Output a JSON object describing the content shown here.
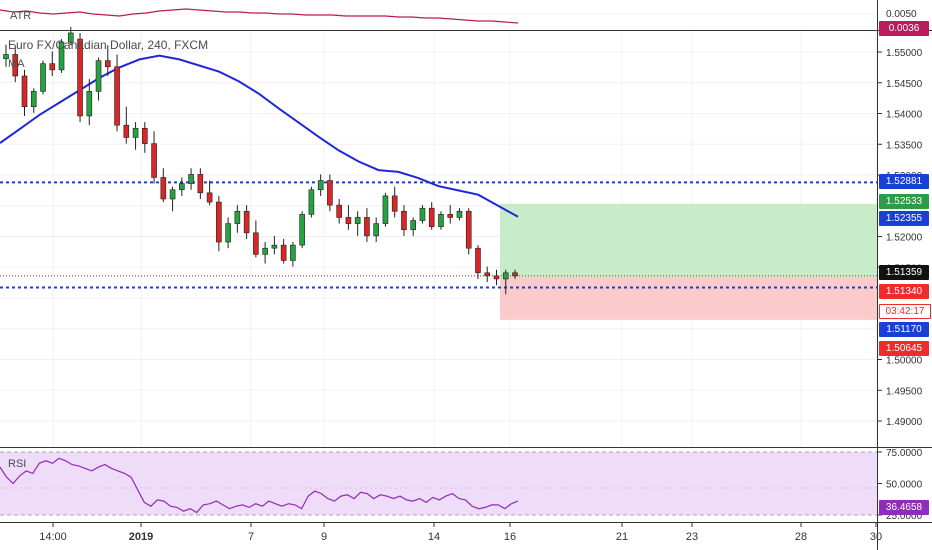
{
  "atr_pane": {
    "label": "ATR",
    "axis_labels": [
      "0.0050"
    ],
    "current_value": "0.0036",
    "colors": {
      "line": "#b71c5c",
      "value_bg": "#b71c5c"
    }
  },
  "main_pane": {
    "legend_title": "Euro FX/Canadian Dollar, 240, FXCM",
    "legend_ma": "MA",
    "y_axis_labels": [
      "1.55000",
      "1.54500",
      "1.54000",
      "1.53500",
      "1.53000",
      "1.52000",
      "1.51500",
      "1.50000",
      "1.49500",
      "1.49000"
    ],
    "price_tags": [
      {
        "text": "1.52881",
        "color": "#1a3fd6"
      },
      {
        "text": "1.52533",
        "color": "#2e9b48"
      },
      {
        "text": "1.52355",
        "color": "#1a3fd6"
      },
      {
        "text": "1.51359",
        "color": "#111111"
      },
      {
        "text": "1.51340",
        "color": "#ef2b2b"
      },
      {
        "text": "03:42:17",
        "color": "#ef2b2b",
        "style": "outline"
      },
      {
        "text": "1.51170",
        "color": "#1a3fd6"
      },
      {
        "text": "1.50645",
        "color": "#ef2b2b"
      }
    ],
    "levels": [
      1.52881,
      1.5117
    ],
    "last_price": 1.51359,
    "position": {
      "entry": 1.5134,
      "target": 1.52533,
      "stop": 1.50645
    },
    "colors": {
      "up": "#26a241",
      "down": "#d92626",
      "ma": "#1f28d9",
      "level": "#1a3fd6",
      "profit_zone": "#c8ecc8",
      "loss_zone": "#fbcaca"
    },
    "ma_line": [
      1.5352,
      1.5375,
      1.5398,
      1.5418,
      1.5438,
      1.5458,
      1.5475,
      1.5488,
      1.5494,
      1.5488,
      1.5478,
      1.5468,
      1.5452,
      1.5432,
      1.5408,
      1.5385,
      1.5362,
      1.534,
      1.5322,
      1.5308,
      1.5305,
      1.5295,
      1.5282,
      1.5275,
      1.5268,
      1.525,
      1.5232
    ],
    "candles": [
      [
        1.5489,
        1.5512,
        1.5476,
        1.5496
      ],
      [
        1.5496,
        1.5511,
        1.5451,
        1.5461
      ],
      [
        1.5461,
        1.5471,
        1.5396,
        1.5411
      ],
      [
        1.5411,
        1.5441,
        1.5401,
        1.5436
      ],
      [
        1.5436,
        1.5486,
        1.5431,
        1.5481
      ],
      [
        1.5481,
        1.5501,
        1.5461,
        1.5471
      ],
      [
        1.5471,
        1.5521,
        1.5466,
        1.5516
      ],
      [
        1.5516,
        1.5541,
        1.5511,
        1.5531
      ],
      [
        1.5521,
        1.5531,
        1.5386,
        1.5396
      ],
      [
        1.5396,
        1.5456,
        1.5381,
        1.5436
      ],
      [
        1.5436,
        1.5491,
        1.5421,
        1.5486
      ],
      [
        1.5486,
        1.5511,
        1.5461,
        1.5476
      ],
      [
        1.5476,
        1.5496,
        1.5371,
        1.5381
      ],
      [
        1.5381,
        1.5411,
        1.5351,
        1.5361
      ],
      [
        1.5361,
        1.5386,
        1.5341,
        1.5376
      ],
      [
        1.5376,
        1.5386,
        1.5336,
        1.5351
      ],
      [
        1.5351,
        1.5371,
        1.5286,
        1.5296
      ],
      [
        1.5296,
        1.5311,
        1.5256,
        1.5261
      ],
      [
        1.5261,
        1.5281,
        1.5241,
        1.5276
      ],
      [
        1.5276,
        1.5296,
        1.5266,
        1.5286
      ],
      [
        1.5286,
        1.5311,
        1.5276,
        1.5301
      ],
      [
        1.5301,
        1.5311,
        1.5261,
        1.5271
      ],
      [
        1.5271,
        1.5291,
        1.5251,
        1.5256
      ],
      [
        1.5256,
        1.5266,
        1.5176,
        1.5191
      ],
      [
        1.5191,
        1.5231,
        1.5181,
        1.5221
      ],
      [
        1.5221,
        1.5251,
        1.5206,
        1.5241
      ],
      [
        1.5241,
        1.5251,
        1.5196,
        1.5206
      ],
      [
        1.5206,
        1.5226,
        1.5166,
        1.5171
      ],
      [
        1.5171,
        1.5191,
        1.5156,
        1.5181
      ],
      [
        1.5181,
        1.5201,
        1.5171,
        1.5186
      ],
      [
        1.5186,
        1.5196,
        1.5156,
        1.5161
      ],
      [
        1.5161,
        1.5191,
        1.5151,
        1.5186
      ],
      [
        1.5186,
        1.5241,
        1.5181,
        1.5236
      ],
      [
        1.5236,
        1.5281,
        1.5231,
        1.5276
      ],
      [
        1.5276,
        1.5301,
        1.5266,
        1.5291
      ],
      [
        1.5291,
        1.5301,
        1.5241,
        1.5251
      ],
      [
        1.5251,
        1.5261,
        1.5221,
        1.5231
      ],
      [
        1.5231,
        1.5251,
        1.5211,
        1.5221
      ],
      [
        1.5221,
        1.5241,
        1.5201,
        1.5231
      ],
      [
        1.5231,
        1.5246,
        1.5191,
        1.5201
      ],
      [
        1.5201,
        1.5231,
        1.5191,
        1.5221
      ],
      [
        1.5221,
        1.5271,
        1.5216,
        1.5266
      ],
      [
        1.5266,
        1.5281,
        1.5231,
        1.5241
      ],
      [
        1.5241,
        1.5251,
        1.5201,
        1.5211
      ],
      [
        1.5211,
        1.5231,
        1.5201,
        1.5226
      ],
      [
        1.5226,
        1.5251,
        1.5221,
        1.5246
      ],
      [
        1.5246,
        1.5256,
        1.5211,
        1.5216
      ],
      [
        1.5216,
        1.5241,
        1.5211,
        1.5236
      ],
      [
        1.5236,
        1.5251,
        1.5221,
        1.5231
      ],
      [
        1.5231,
        1.5246,
        1.5226,
        1.5241
      ],
      [
        1.5241,
        1.5246,
        1.5171,
        1.5181
      ],
      [
        1.5181,
        1.5186,
        1.5131,
        1.5141
      ],
      [
        1.5141,
        1.5151,
        1.5126,
        1.5136
      ],
      [
        1.5136,
        1.5146,
        1.5121,
        1.5131
      ],
      [
        1.5131,
        1.5146,
        1.5106,
        1.5141
      ],
      [
        1.5141,
        1.5146,
        1.5131,
        1.5136
      ]
    ]
  },
  "rsi_pane": {
    "label": "RSI",
    "axis_labels": [
      "75.0000",
      "50.0000",
      "25.0000"
    ],
    "current_value": "36.4658",
    "colors": {
      "line": "#8e2db8",
      "band": "#eedcf8",
      "value_bg": "#8e2db8"
    },
    "values": [
      63,
      55,
      50,
      56,
      60,
      58,
      66,
      68,
      66,
      70,
      68,
      65,
      64,
      62,
      60,
      63,
      65,
      62,
      60,
      58,
      55,
      45,
      35,
      32,
      37,
      36,
      32,
      31,
      28,
      30,
      27,
      33,
      34,
      36,
      33,
      30,
      32,
      33,
      31,
      34,
      32,
      36,
      34,
      32,
      34,
      33,
      30,
      40,
      44,
      42,
      38,
      36,
      40,
      41,
      38,
      43,
      42,
      38,
      41,
      40,
      38,
      40,
      37,
      36,
      38,
      35,
      39,
      37,
      40,
      42,
      38,
      37,
      32,
      30,
      31,
      33,
      33,
      30,
      34,
      36
    ]
  },
  "time_axis": {
    "labels": [
      "14:00",
      "2019",
      "7",
      "9",
      "14",
      "16",
      "21",
      "23",
      "28",
      "30"
    ]
  }
}
